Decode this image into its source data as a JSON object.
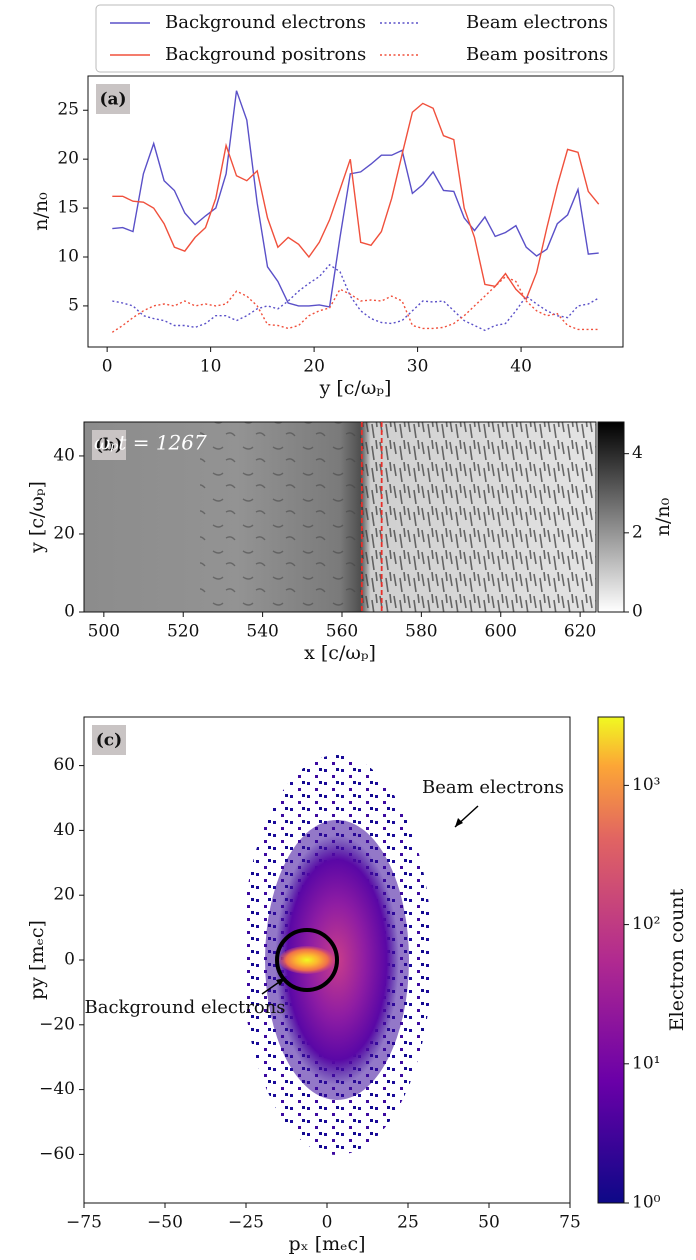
{
  "chart_data": [
    {
      "type": "line",
      "panel_label": "(a)",
      "x_label": "y [c/ωₚ]",
      "y_label": "n/n₀",
      "x": [
        0.5,
        1.5,
        2.5,
        3.5,
        4.5,
        5.5,
        6.5,
        7.5,
        8.5,
        9.5,
        10.5,
        11.5,
        12.5,
        13.5,
        14.5,
        15.5,
        16.5,
        17.5,
        18.5,
        19.5,
        20.5,
        21.5,
        22.5,
        23.5,
        24.5,
        25.5,
        26.5,
        27.5,
        28.5,
        29.5,
        30.5,
        31.5,
        32.5,
        33.5,
        34.5,
        35.5,
        36.5,
        37.5,
        38.5,
        39.5,
        40.5,
        41.5,
        42.5,
        43.5,
        44.5,
        45.5,
        46.5,
        47.5
      ],
      "xlim": [
        -1.85,
        49.85
      ],
      "xticks": [
        0,
        10,
        20,
        30,
        40
      ],
      "ylim": [
        0.8,
        28.5
      ],
      "yticks": [
        5,
        10,
        15,
        20,
        25
      ],
      "legend": "top",
      "series": [
        {
          "name": "Background electrons",
          "color": "#5a50c8",
          "linestyle": "solid",
          "values": [
            12.9,
            13.0,
            12.6,
            18.5,
            21.6,
            17.8,
            16.8,
            14.5,
            13.3,
            14.2,
            15.0,
            18.5,
            27.0,
            24.0,
            15.5,
            9.0,
            7.5,
            5.3,
            5.0,
            5.0,
            5.1,
            4.9,
            12.0,
            18.5,
            18.7,
            19.5,
            20.4,
            20.4,
            20.9,
            16.5,
            17.4,
            18.7,
            16.8,
            16.7,
            14.0,
            12.7,
            14.1,
            12.1,
            12.5,
            13.2,
            11.0,
            10.1,
            10.8,
            13.4,
            14.3,
            16.9,
            10.3,
            10.4
          ]
        },
        {
          "name": "Background positrons",
          "color": "#f0503c",
          "linestyle": "solid",
          "values": [
            16.2,
            16.2,
            15.7,
            15.6,
            15.0,
            13.4,
            11.0,
            10.6,
            12.0,
            13.0,
            16.0,
            21.4,
            18.3,
            17.8,
            18.8,
            14.0,
            11.0,
            12.0,
            11.3,
            10.0,
            11.5,
            13.8,
            16.9,
            20.0,
            11.5,
            11.2,
            12.6,
            16.0,
            20.5,
            24.8,
            25.7,
            25.2,
            22.4,
            22.0,
            15.0,
            12.0,
            7.2,
            7.0,
            8.3,
            6.7,
            5.7,
            8.4,
            13.0,
            17.3,
            21.0,
            20.7,
            16.7,
            15.4
          ]
        },
        {
          "name": "Beam electrons",
          "color": "#5a50c8",
          "linestyle": "dotted",
          "values": [
            5.5,
            5.3,
            5.0,
            4.0,
            3.7,
            3.5,
            3.0,
            3.0,
            2.8,
            3.2,
            4.0,
            4.0,
            3.5,
            4.0,
            4.7,
            5.0,
            4.7,
            5.5,
            6.5,
            7.3,
            8.0,
            9.2,
            8.5,
            6.0,
            4.5,
            3.7,
            3.3,
            3.2,
            3.5,
            4.5,
            5.5,
            5.4,
            5.5,
            4.5,
            3.5,
            3.0,
            2.5,
            3.0,
            3.2,
            4.5,
            6.0,
            5.2,
            4.5,
            4.0,
            3.8,
            5.0,
            5.2,
            5.8
          ]
        },
        {
          "name": "Beam positrons",
          "color": "#f0503c",
          "linestyle": "dotted",
          "values": [
            2.3,
            3.0,
            3.8,
            4.5,
            5.0,
            5.2,
            5.0,
            5.5,
            5.0,
            5.2,
            5.0,
            5.2,
            6.5,
            6.0,
            5.0,
            3.1,
            3.0,
            2.7,
            3.0,
            4.0,
            4.5,
            4.8,
            6.7,
            6.2,
            5.5,
            5.6,
            5.5,
            6.0,
            5.5,
            3.0,
            2.7,
            2.7,
            2.8,
            3.2,
            4.0,
            5.0,
            6.0,
            7.0,
            8.0,
            7.5,
            5.5,
            4.5,
            4.0,
            4.2,
            3.0,
            2.6,
            2.6,
            2.6
          ]
        }
      ]
    },
    {
      "type": "heatmap",
      "panel_label": "(b)",
      "x_label": "x [c/ωₚ]",
      "y_label": "y [c/ωₚ]",
      "annotation": "ωₚt = 1267",
      "xlim": [
        495,
        624
      ],
      "xticks": [
        500,
        520,
        540,
        560,
        580,
        600,
        620
      ],
      "ylim": [
        0,
        48.7
      ],
      "yticks": [
        0,
        20,
        40
      ],
      "vlines": [
        565,
        570
      ],
      "vline_color": "#e8302a",
      "colorbar_label": "n/n₀",
      "clim": [
        0,
        4.8
      ],
      "colorbar_ticks": [
        0,
        2,
        4
      ],
      "colormap": "gray_r"
    },
    {
      "type": "hist2d",
      "panel_label": "(c)",
      "x_label": "pₓ [mₑc]",
      "y_label": "py [mₑc]",
      "annotations": [
        "Beam electrons",
        "Background electrons"
      ],
      "xlim": [
        -75,
        75
      ],
      "xticks": [
        {
          "value": -75,
          "label": "−75"
        },
        {
          "value": -50,
          "label": "−50"
        },
        {
          "value": -25,
          "label": "−25"
        },
        0,
        25,
        50,
        75
      ],
      "ylim": [
        -75,
        75
      ],
      "yticks": [
        {
          "value": -60,
          "label": "−60"
        },
        {
          "value": -40,
          "label": "−40"
        },
        {
          "value": -20,
          "label": "−20"
        },
        0,
        20,
        40,
        60
      ],
      "colorbar_label": "Electron count",
      "colorbar_scale": "log",
      "clim": [
        1,
        3100
      ],
      "colorbar_ticks": [
        {
          "value": 1,
          "label": "10⁰"
        },
        {
          "value": 10,
          "label": "10¹"
        },
        {
          "value": 100,
          "label": "10²"
        },
        {
          "value": 1000,
          "label": "10³"
        }
      ],
      "colormap": "plasma"
    }
  ]
}
